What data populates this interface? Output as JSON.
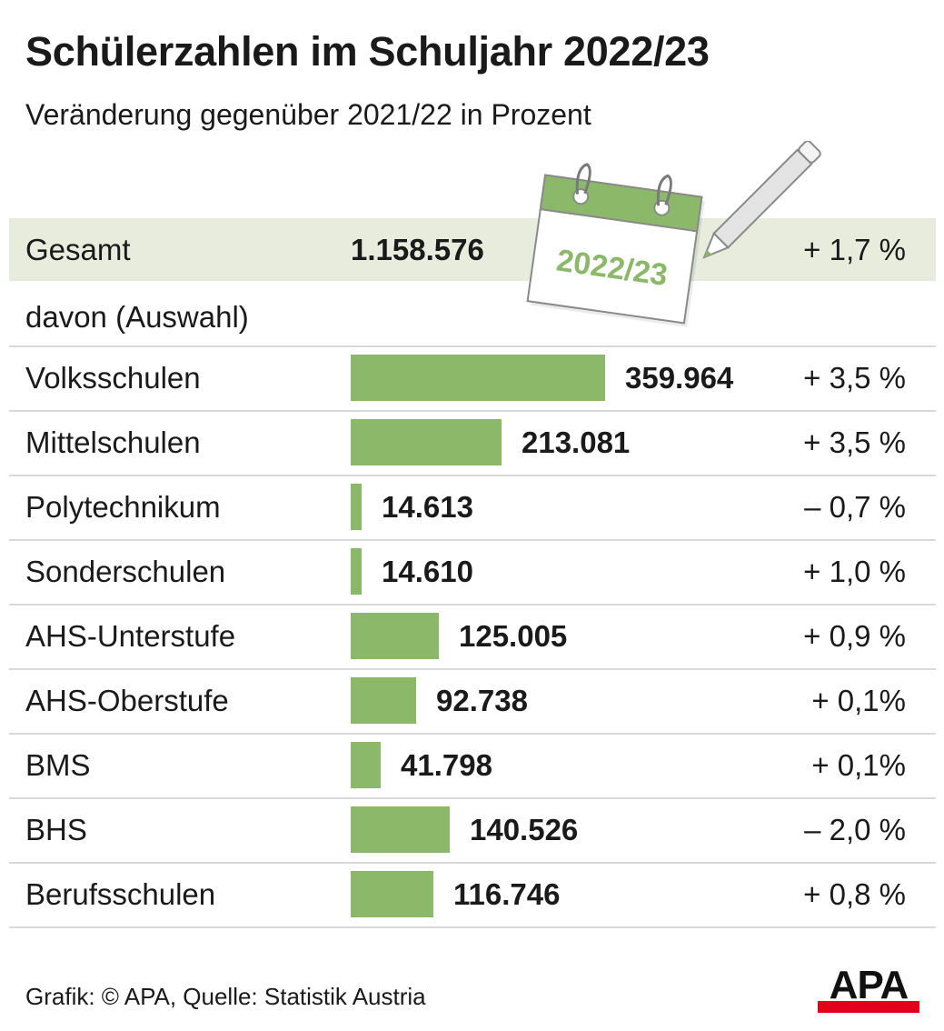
{
  "title": "Schülerzahlen im Schuljahr 2022/23",
  "subtitle": "Veränderung gegenüber 2021/22 in Prozent",
  "section_label": "davon (Auswahl)",
  "calendar_label": "2022/23",
  "footer": "Grafik: © APA, Quelle: Statistik Austria",
  "logo_text": "APA",
  "colors": {
    "bar": "#8cb869",
    "total_row_bg": "#e7ecdc",
    "logo_red": "#e2001a",
    "calendar_green": "#8cb869"
  },
  "chart_data": {
    "type": "bar",
    "orientation": "horizontal",
    "title": "Schülerzahlen im Schuljahr 2022/23",
    "subtitle": "Veränderung gegenüber 2021/22 in Prozent",
    "total": {
      "label": "Gesamt",
      "value": 1158576,
      "value_label": "1.158.576",
      "change": "+ 1,7 %"
    },
    "categories": [
      "Volksschulen",
      "Mittelschulen",
      "Polytechnikum",
      "Sonderschulen",
      "AHS-Unterstufe",
      "AHS-Oberstufe",
      "BMS",
      "BHS",
      "Berufsschulen"
    ],
    "values": [
      359964,
      213081,
      14613,
      14610,
      125005,
      92738,
      41798,
      140526,
      116746
    ],
    "value_labels": [
      "359.964",
      "213.081",
      "14.613",
      "14.610",
      "125.005",
      "92.738",
      "41.798",
      "140.526",
      "116.746"
    ],
    "changes": [
      "+ 3,5 %",
      "+ 3,5 %",
      "– 0,7 %",
      "+ 1,0 %",
      "+ 0,9 %",
      "+ 0,1%",
      "+ 0,1%",
      "– 2,0 %",
      "+ 0,8 %"
    ],
    "grid": false,
    "legend": "none"
  }
}
